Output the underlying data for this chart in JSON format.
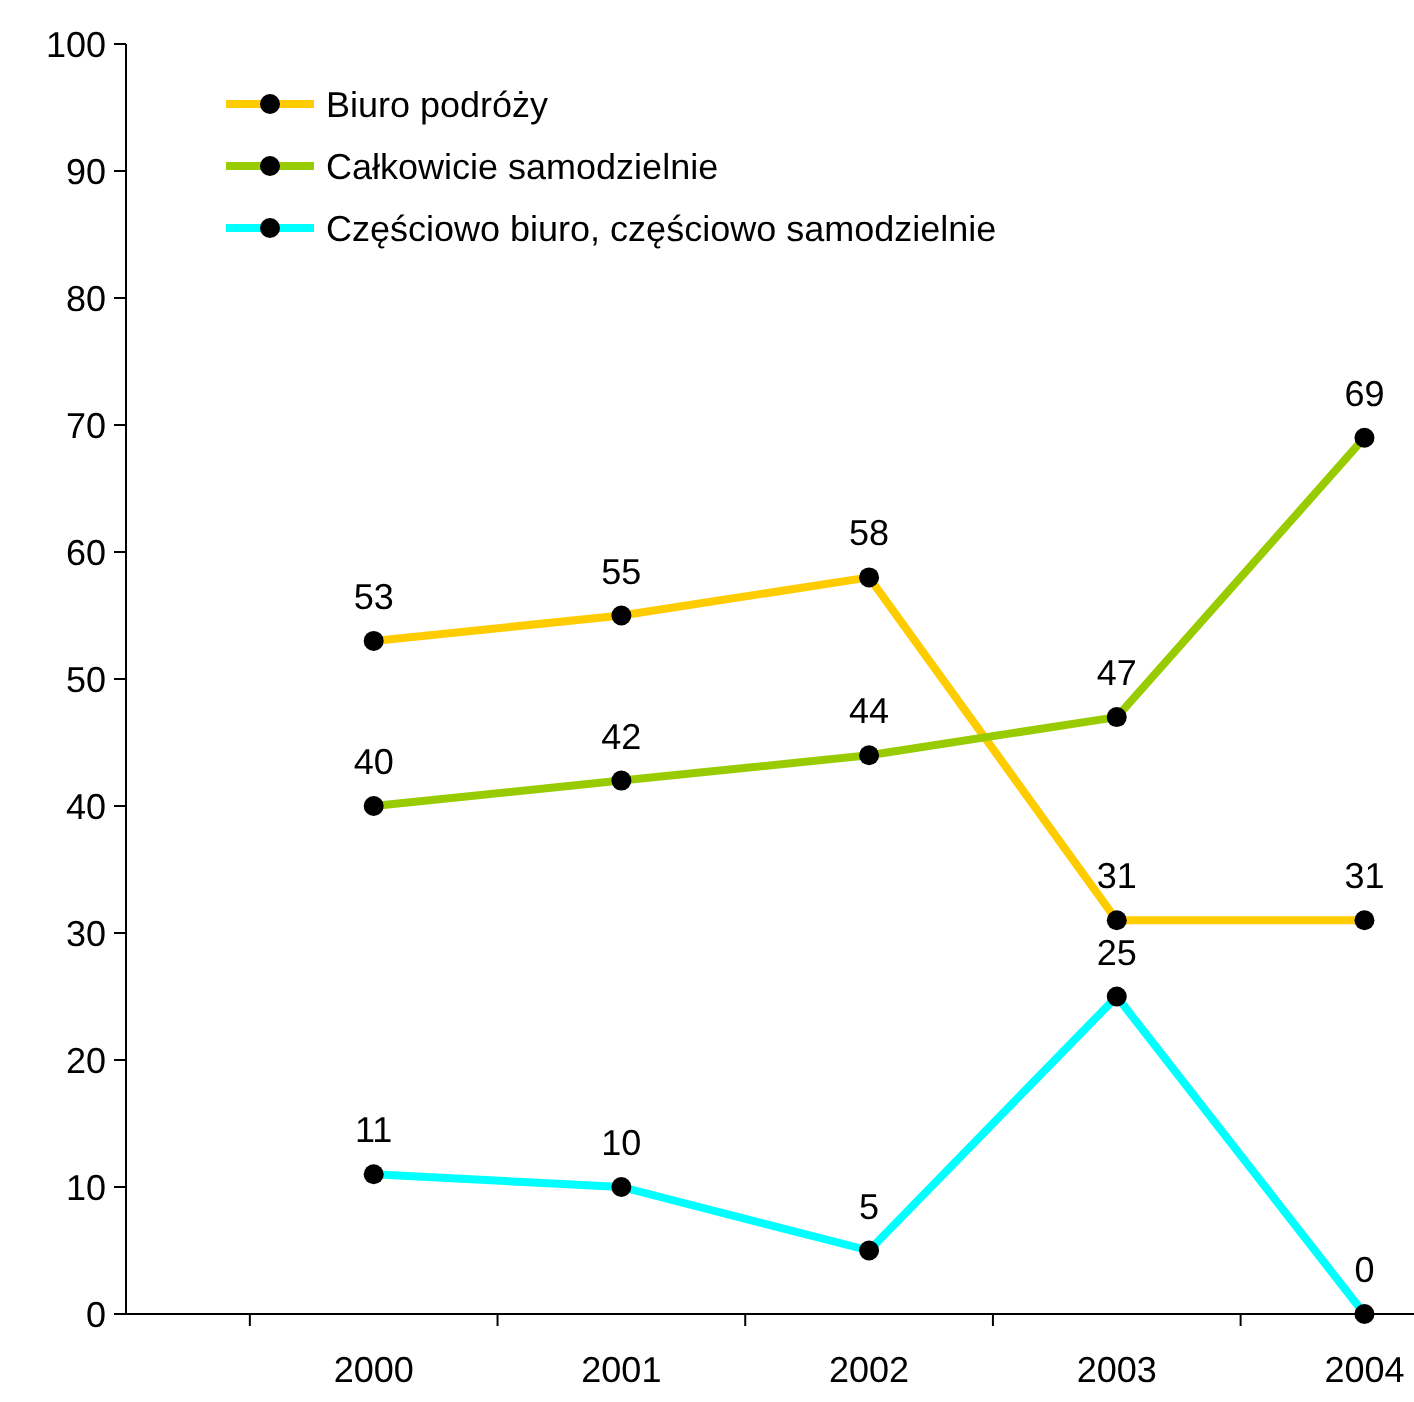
{
  "chart_data": {
    "type": "line",
    "categories": [
      "2000",
      "2001",
      "2002",
      "2003",
      "2004"
    ],
    "series": [
      {
        "name": "Biuro podróży",
        "color": "#ffcc00",
        "values": [
          53,
          55,
          58,
          31,
          31
        ]
      },
      {
        "name": "Całkowicie samodzielnie",
        "color": "#99cc00",
        "values": [
          40,
          42,
          44,
          47,
          69
        ]
      },
      {
        "name": "Częściowo biuro, częściowo samodzielnie",
        "color": "#00ffff",
        "values": [
          11,
          10,
          5,
          25,
          0
        ]
      }
    ],
    "ylim": [
      0,
      100
    ],
    "yticks": [
      0,
      10,
      20,
      30,
      40,
      50,
      60,
      70,
      80,
      90,
      100
    ],
    "grid": false,
    "legend": "top left",
    "marker": "circle",
    "line_style": "solid",
    "data_labels": true
  }
}
